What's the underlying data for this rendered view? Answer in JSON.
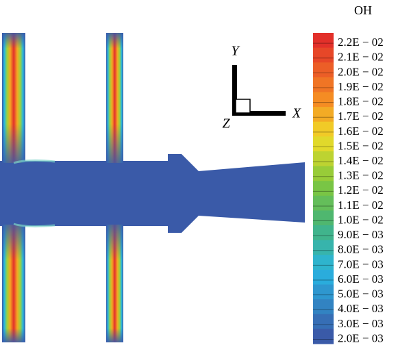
{
  "legend": {
    "title": "OH",
    "labels": [
      "2.2E − 02",
      "2.1E − 02",
      "2.0E − 02",
      "1.9E − 02",
      "1.8E − 02",
      "1.7E − 02",
      "1.6E − 02",
      "1.5E − 02",
      "1.4E − 02",
      "1.3E − 02",
      "1.2E − 02",
      "1.1E − 02",
      "1.0E − 02",
      "9.0E − 03",
      "8.0E − 03",
      "7.0E − 03",
      "6.0E − 03",
      "5.0E − 03",
      "4.0E − 03",
      "3.0E − 03",
      "2.0E − 03"
    ]
  },
  "axes": {
    "y": "Y",
    "x": "X",
    "z": "Z"
  }
}
